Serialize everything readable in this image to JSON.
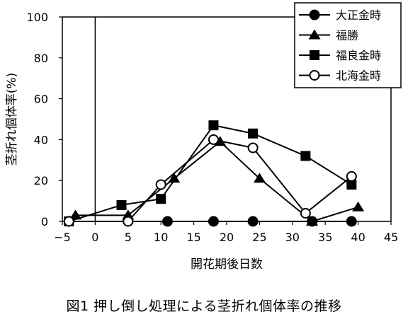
{
  "chart_data": {
    "type": "line",
    "ylabel": "茎折れ個体率(%)",
    "xlabel": "開花期後日数",
    "caption": "図1  押し倒し処理による茎折れ個体率の推移",
    "xlim": [
      -5,
      45
    ],
    "ylim": [
      0,
      100
    ],
    "xticks": [
      "-5",
      "0",
      "5",
      "10",
      "15",
      "20",
      "25",
      "30",
      "35",
      "40",
      "45"
    ],
    "yticks": [
      "0",
      "20",
      "40",
      "60",
      "80",
      "100"
    ],
    "reference_line_x": 0,
    "grid": false,
    "legend_position": "top-right",
    "series": [
      {
        "name": "大正金時",
        "marker": "filled-circle",
        "x": [
          -4,
          5,
          11,
          18,
          24,
          33,
          39
        ],
        "y": [
          0,
          0,
          0,
          0,
          0,
          0,
          0
        ]
      },
      {
        "name": "福勝",
        "marker": "filled-triangle",
        "x": [
          -3,
          5,
          12,
          19,
          25,
          33,
          40
        ],
        "y": [
          3,
          3,
          21,
          39,
          21,
          0,
          7
        ]
      },
      {
        "name": "福良金時",
        "marker": "filled-square",
        "x": [
          -4,
          4,
          10,
          18,
          24,
          32,
          39
        ],
        "y": [
          0,
          8,
          11,
          47,
          43,
          32,
          18
        ]
      },
      {
        "name": "北海金時",
        "marker": "open-circle",
        "x": [
          -4,
          5,
          10,
          18,
          24,
          32,
          39
        ],
        "y": [
          0,
          0,
          18,
          40,
          36,
          4,
          22
        ]
      }
    ]
  }
}
